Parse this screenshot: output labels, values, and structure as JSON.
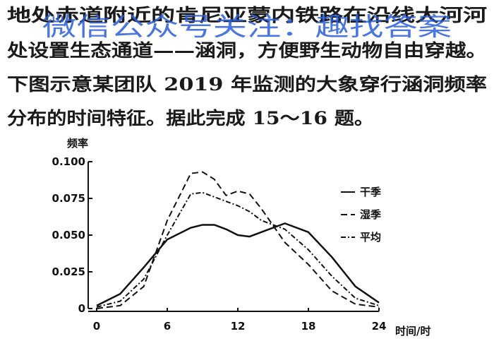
{
  "text": [
    "地处赤道附近的肯尼亚蒙内铁路在沿线大河河",
    "处设置生态通道——涵洞，方便野生动物自由穿越。",
    "下图示意某团队 2019 年监测的大象穿行涵洞频率",
    "分布的时间特征。据此完成 15～16 题。"
  ],
  "watermark": "微信公众号关注：趣找答案",
  "chart_data": {
    "type": "line",
    "ylabel": "频率",
    "xlabel": "时间/时",
    "x": [
      0,
      2,
      4,
      6,
      8,
      9,
      10,
      11,
      12,
      13,
      14,
      16,
      18,
      20,
      22,
      24
    ],
    "series": [
      {
        "name": "干季",
        "color": "#111111",
        "dash": "solid",
        "values": [
          0.002,
          0.01,
          0.028,
          0.047,
          0.055,
          0.057,
          0.057,
          0.054,
          0.05,
          0.049,
          0.052,
          0.058,
          0.052,
          0.035,
          0.015,
          0.004
        ]
      },
      {
        "name": "湿季",
        "color": "#111111",
        "dash": "dashed",
        "values": [
          0,
          0.002,
          0.015,
          0.06,
          0.092,
          0.093,
          0.088,
          0.077,
          0.08,
          0.078,
          0.068,
          0.045,
          0.03,
          0.012,
          0.003,
          0.001
        ]
      },
      {
        "name": "平均",
        "color": "#111111",
        "dash": "dashdot",
        "values": [
          0.001,
          0.005,
          0.02,
          0.05,
          0.078,
          0.079,
          0.076,
          0.073,
          0.07,
          0.066,
          0.06,
          0.054,
          0.04,
          0.022,
          0.007,
          0.002
        ]
      }
    ],
    "xlim": [
      0,
      24
    ],
    "xticks": [
      0,
      6,
      12,
      18,
      24
    ],
    "ylim": [
      0,
      0.1
    ],
    "yticks": [
      0,
      {
        "value": 0.025,
        "label": "0.025"
      },
      {
        "value": 0.05,
        "label": "0.050"
      },
      {
        "value": 0.075,
        "label": "0.075"
      },
      {
        "value": 0.1,
        "label": "0.100"
      }
    ]
  }
}
